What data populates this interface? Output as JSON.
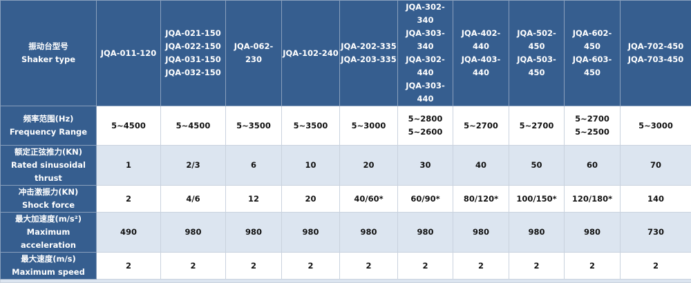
{
  "header": {
    "label_cn": "振动台型号",
    "label_en": "Shaker type",
    "models": [
      [
        "JQA-011-120"
      ],
      [
        "JQA-021-150",
        "JQA-022-150",
        "JQA-031-150",
        "JQA-032-150"
      ],
      [
        "JQA-062-230"
      ],
      [
        "JQA-102-240"
      ],
      [
        "JQA-202-335",
        "JQA-203-335"
      ],
      [
        "JQA-302-340",
        "JQA-303-340",
        "JQA-302-440",
        "JQA-303-440"
      ],
      [
        "JQA-402-440",
        "JQA-403-440"
      ],
      [
        "JQA-502-450",
        "JQA-503-450"
      ],
      [
        "JQA-602-450",
        "JQA-603-450"
      ],
      [
        "JQA-702-450",
        "JQA-703-450"
      ]
    ]
  },
  "rows": [
    {
      "label_cn": "频率范围(Hz)",
      "label_en": "Frequency Range",
      "values": [
        [
          "5~4500"
        ],
        [
          "5~4500"
        ],
        [
          "5~3500"
        ],
        [
          "5~3500"
        ],
        [
          "5~3000"
        ],
        [
          "5~2800",
          "5~2600"
        ],
        [
          "5~2700"
        ],
        [
          "5~2700"
        ],
        [
          "5~2700",
          "5~2500"
        ],
        [
          "5~3000"
        ]
      ]
    },
    {
      "label_cn": "额定正弦推力(KN)",
      "label_en": "Rated sinusoidal thrust",
      "values": [
        [
          "1"
        ],
        [
          "2/3"
        ],
        [
          "6"
        ],
        [
          "10"
        ],
        [
          "20"
        ],
        [
          "30"
        ],
        [
          "40"
        ],
        [
          "50"
        ],
        [
          "60"
        ],
        [
          "70"
        ]
      ]
    },
    {
      "label_cn": "冲击激振力(KN)",
      "label_en": "Shock force",
      "values": [
        [
          "2"
        ],
        [
          "4/6"
        ],
        [
          "12"
        ],
        [
          "20"
        ],
        [
          "40/60*"
        ],
        [
          "60/90*"
        ],
        [
          "80/120*"
        ],
        [
          "100/150*"
        ],
        [
          "120/180*"
        ],
        [
          "140"
        ]
      ]
    },
    {
      "label_cn": "最大加速度(m/s²)",
      "label_en": "Maximum acceleration",
      "values": [
        [
          "490"
        ],
        [
          "980"
        ],
        [
          "980"
        ],
        [
          "980"
        ],
        [
          "980"
        ],
        [
          "980"
        ],
        [
          "980"
        ],
        [
          "980"
        ],
        [
          "980"
        ],
        [
          "730"
        ]
      ]
    },
    {
      "label_cn": "最大速度(m/s)",
      "label_en": "Maximum speed",
      "values": [
        [
          "2"
        ],
        [
          "2"
        ],
        [
          "2"
        ],
        [
          "2"
        ],
        [
          "2"
        ],
        [
          "2"
        ],
        [
          "2"
        ],
        [
          "2"
        ],
        [
          "2"
        ],
        [
          "2"
        ]
      ]
    }
  ],
  "colors": {
    "header_bg": "#365e8f",
    "alt_row_bg": "#dce5f0"
  }
}
